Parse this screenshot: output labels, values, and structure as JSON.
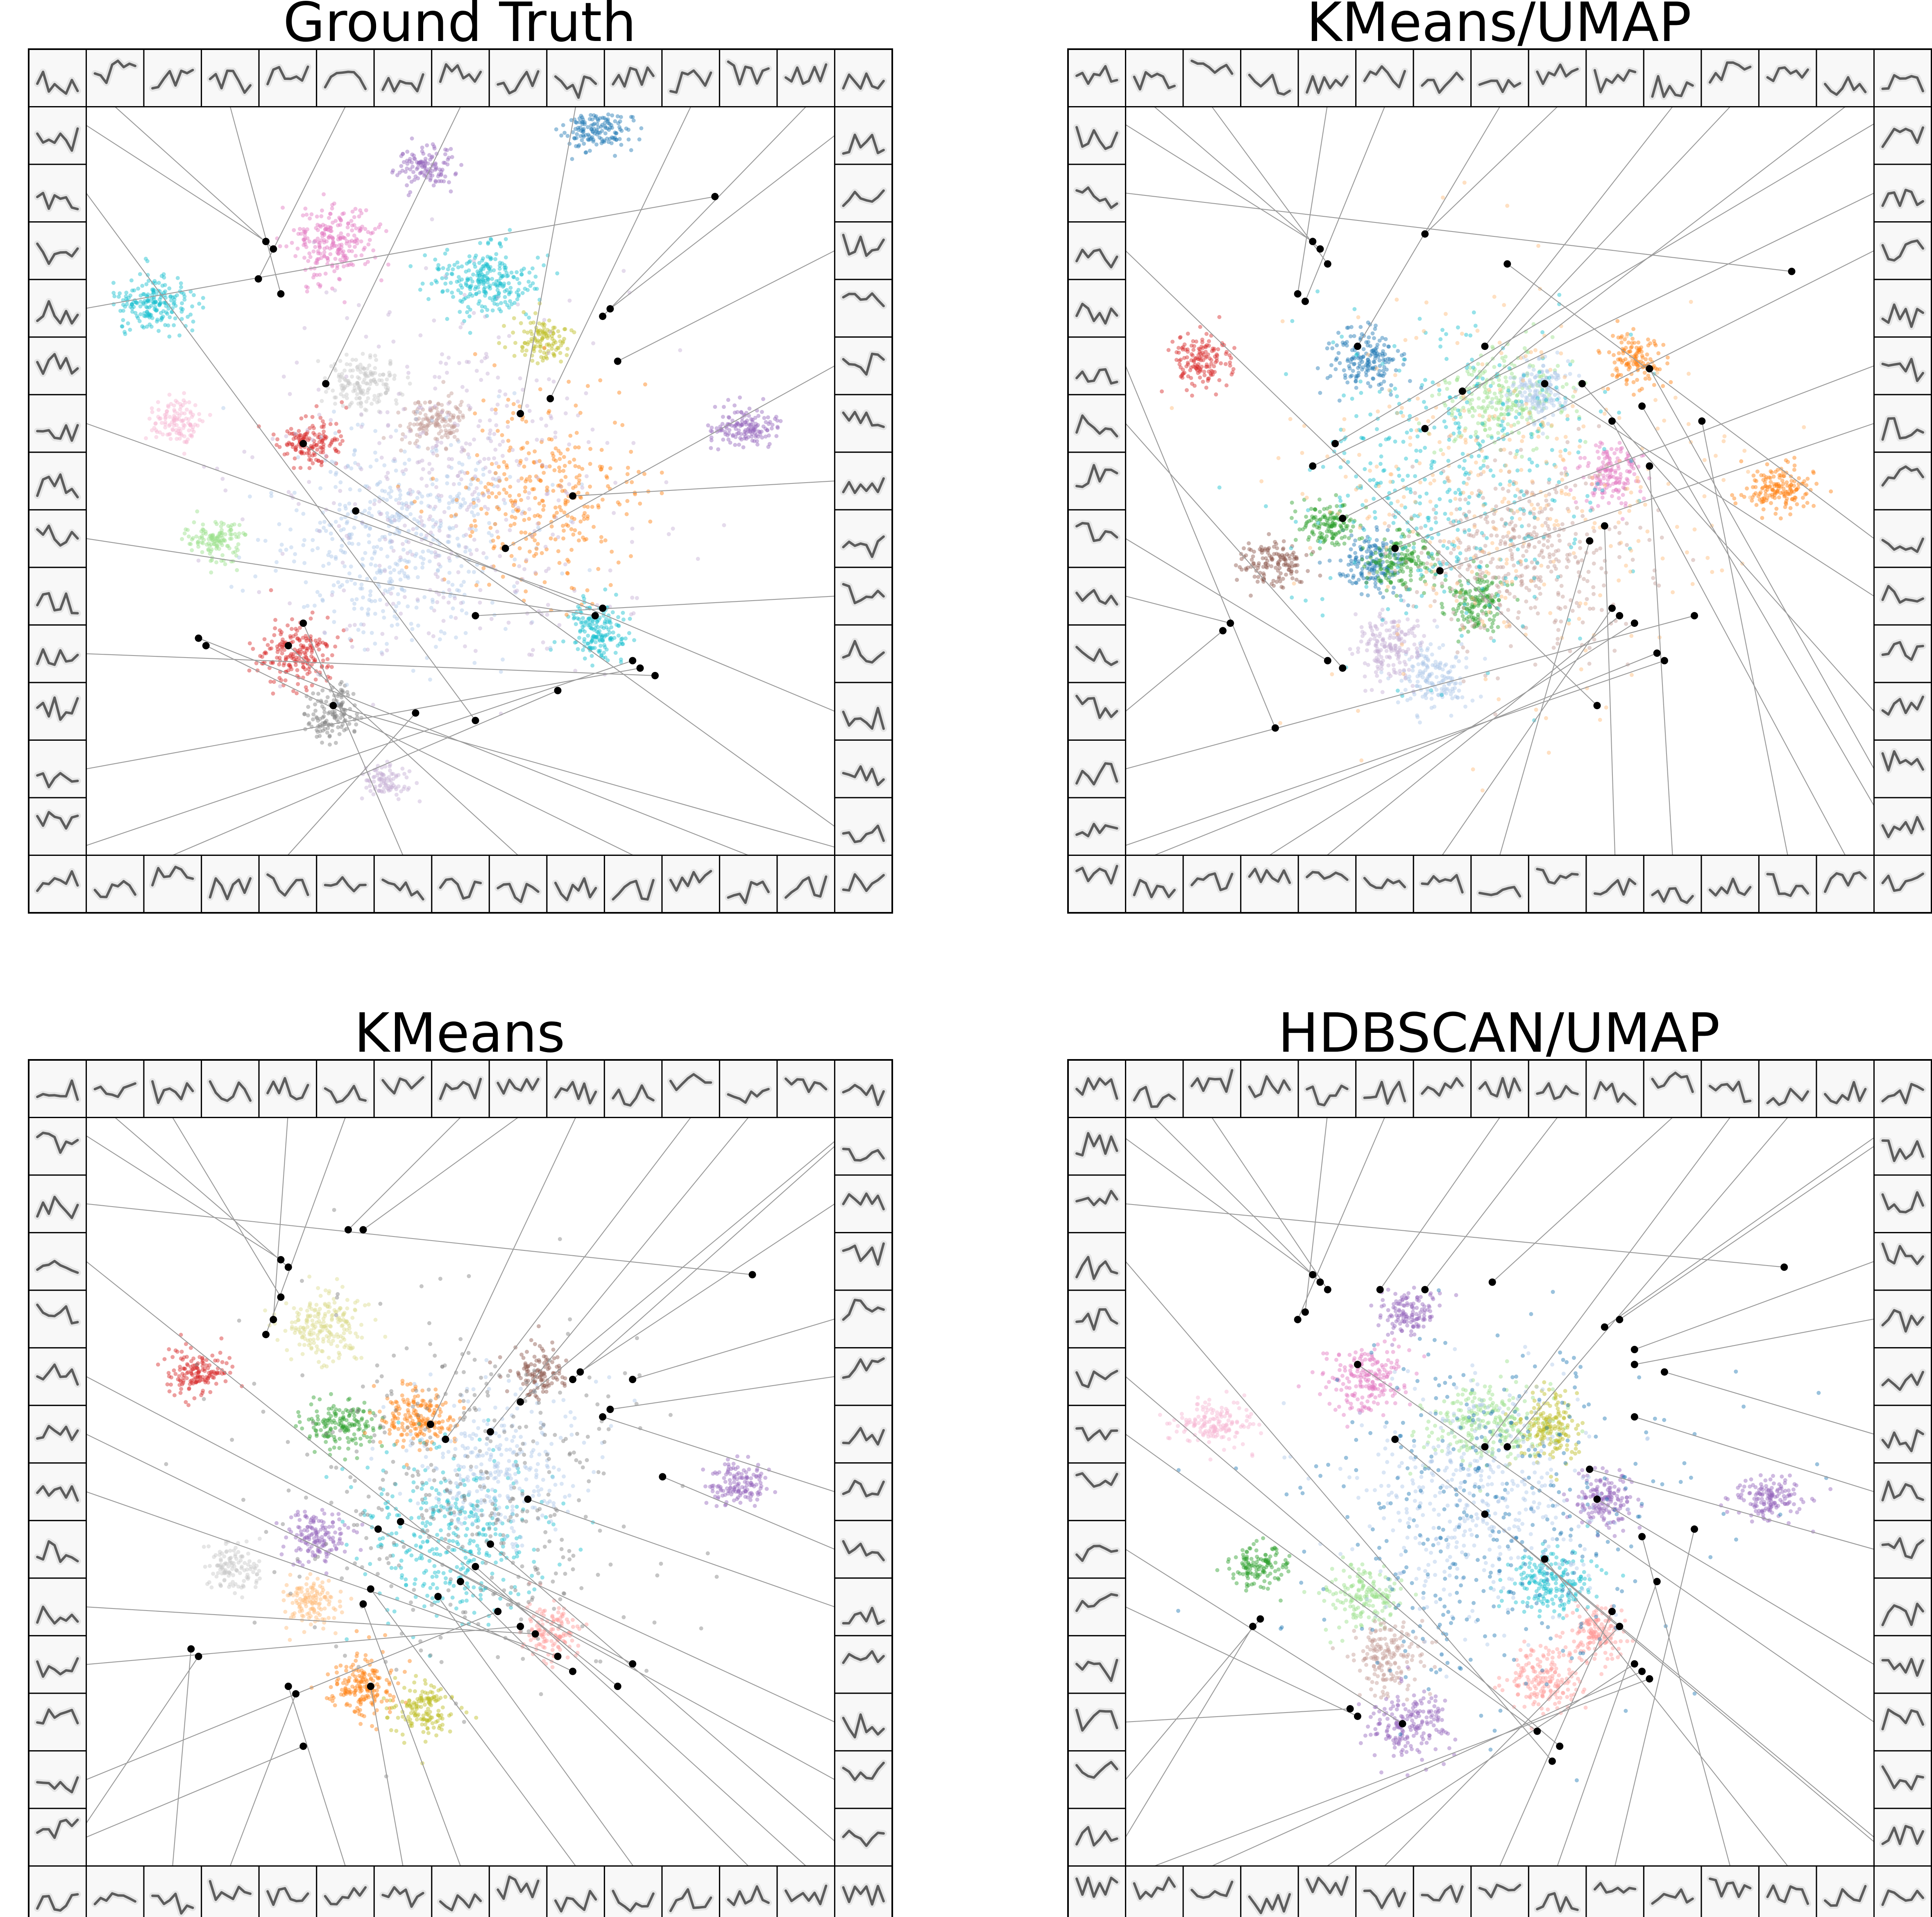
{
  "chart_data": [
    {
      "type": "scatter",
      "title": "Ground Truth",
      "xlabel": "",
      "ylabel": "",
      "seed": 11,
      "clusters": [
        {
          "cx": 0.68,
          "cy": 0.97,
          "sx": 0.022,
          "sy": 0.014,
          "n": 160,
          "color": "#1f77b4"
        },
        {
          "cx": 0.3,
          "cy": 0.55,
          "sx": 0.02,
          "sy": 0.016,
          "n": 150,
          "color": "#d62728"
        },
        {
          "cx": 0.09,
          "cy": 0.74,
          "sx": 0.026,
          "sy": 0.018,
          "n": 200,
          "color": "#17becf"
        },
        {
          "cx": 0.33,
          "cy": 0.82,
          "sx": 0.028,
          "sy": 0.026,
          "n": 240,
          "color": "#e377c2"
        },
        {
          "cx": 0.53,
          "cy": 0.77,
          "sx": 0.036,
          "sy": 0.022,
          "n": 260,
          "color": "#17becf"
        },
        {
          "cx": 0.17,
          "cy": 0.42,
          "sx": 0.02,
          "sy": 0.014,
          "n": 130,
          "color": "#98df8a"
        },
        {
          "cx": 0.12,
          "cy": 0.58,
          "sx": 0.018,
          "sy": 0.016,
          "n": 120,
          "color": "#f7b6d2"
        },
        {
          "cx": 0.47,
          "cy": 0.58,
          "sx": 0.022,
          "sy": 0.018,
          "n": 150,
          "color": "#c49c94"
        },
        {
          "cx": 0.37,
          "cy": 0.63,
          "sx": 0.026,
          "sy": 0.018,
          "n": 170,
          "color": "#c7c7c7"
        },
        {
          "cx": 0.45,
          "cy": 0.92,
          "sx": 0.018,
          "sy": 0.014,
          "n": 120,
          "color": "#9467bd"
        },
        {
          "cx": 0.61,
          "cy": 0.69,
          "sx": 0.018,
          "sy": 0.016,
          "n": 120,
          "color": "#bcbd22"
        },
        {
          "cx": 0.88,
          "cy": 0.57,
          "sx": 0.024,
          "sy": 0.014,
          "n": 150,
          "color": "#9467bd"
        },
        {
          "cx": 0.33,
          "cy": 0.19,
          "sx": 0.02,
          "sy": 0.018,
          "n": 130,
          "color": "#7f7f7f"
        },
        {
          "cx": 0.4,
          "cy": 0.1,
          "sx": 0.016,
          "sy": 0.012,
          "n": 90,
          "color": "#c5b0d5"
        },
        {
          "cx": 0.28,
          "cy": 0.27,
          "sx": 0.024,
          "sy": 0.022,
          "n": 200,
          "color": "#d62728"
        },
        {
          "cx": 0.68,
          "cy": 0.3,
          "sx": 0.02,
          "sy": 0.02,
          "n": 170,
          "color": "#17becf"
        },
        {
          "cx": 0.42,
          "cy": 0.42,
          "sx": 0.08,
          "sy": 0.07,
          "n": 520,
          "color": "#aec7e8"
        },
        {
          "cx": 0.62,
          "cy": 0.48,
          "sx": 0.06,
          "sy": 0.06,
          "n": 320,
          "color": "#ff7f0e"
        },
        {
          "cx": 0.5,
          "cy": 0.5,
          "sx": 0.12,
          "sy": 0.12,
          "n": 420,
          "color": "#c5b0d5"
        }
      ],
      "highlights": [
        [
          0.24,
          0.82
        ],
        [
          0.25,
          0.81
        ],
        [
          0.26,
          0.75
        ],
        [
          0.23,
          0.77
        ],
        [
          0.32,
          0.63
        ],
        [
          0.58,
          0.59
        ],
        [
          0.62,
          0.61
        ],
        [
          0.69,
          0.72
        ],
        [
          0.7,
          0.73
        ],
        [
          0.71,
          0.66
        ],
        [
          0.56,
          0.41
        ],
        [
          0.65,
          0.48
        ],
        [
          0.52,
          0.32
        ],
        [
          0.36,
          0.46
        ],
        [
          0.29,
          0.55
        ],
        [
          0.33,
          0.2
        ],
        [
          0.15,
          0.29
        ],
        [
          0.16,
          0.28
        ],
        [
          0.27,
          0.28
        ],
        [
          0.29,
          0.31
        ],
        [
          0.44,
          0.19
        ],
        [
          0.63,
          0.22
        ],
        [
          0.73,
          0.26
        ],
        [
          0.74,
          0.25
        ],
        [
          0.76,
          0.24
        ],
        [
          0.68,
          0.32
        ],
        [
          0.69,
          0.33
        ],
        [
          0.84,
          0.88
        ],
        [
          0.52,
          0.18
        ]
      ],
      "thumbnail_seed": 3
    },
    {
      "type": "scatter",
      "title": "KMeans/UMAP",
      "xlabel": "",
      "ylabel": "",
      "seed": 23,
      "clusters": [
        {
          "cx": 0.1,
          "cy": 0.66,
          "sx": 0.02,
          "sy": 0.018,
          "n": 150,
          "color": "#d62728"
        },
        {
          "cx": 0.32,
          "cy": 0.66,
          "sx": 0.022,
          "sy": 0.022,
          "n": 170,
          "color": "#1f77b4"
        },
        {
          "cx": 0.5,
          "cy": 0.61,
          "sx": 0.04,
          "sy": 0.03,
          "n": 260,
          "color": "#98df8a"
        },
        {
          "cx": 0.55,
          "cy": 0.62,
          "sx": 0.02,
          "sy": 0.02,
          "n": 160,
          "color": "#aec7e8"
        },
        {
          "cx": 0.68,
          "cy": 0.66,
          "sx": 0.018,
          "sy": 0.018,
          "n": 130,
          "color": "#ff7f0e"
        },
        {
          "cx": 0.87,
          "cy": 0.49,
          "sx": 0.026,
          "sy": 0.016,
          "n": 160,
          "color": "#ff7f0e"
        },
        {
          "cx": 0.65,
          "cy": 0.51,
          "sx": 0.022,
          "sy": 0.02,
          "n": 160,
          "color": "#e377c2"
        },
        {
          "cx": 0.33,
          "cy": 0.39,
          "sx": 0.02,
          "sy": 0.02,
          "n": 160,
          "color": "#1f77b4"
        },
        {
          "cx": 0.27,
          "cy": 0.44,
          "sx": 0.02,
          "sy": 0.016,
          "n": 140,
          "color": "#2ca02c"
        },
        {
          "cx": 0.2,
          "cy": 0.39,
          "sx": 0.022,
          "sy": 0.016,
          "n": 140,
          "color": "#8c564b"
        },
        {
          "cx": 0.37,
          "cy": 0.39,
          "sx": 0.022,
          "sy": 0.02,
          "n": 160,
          "color": "#2ca02c"
        },
        {
          "cx": 0.41,
          "cy": 0.24,
          "sx": 0.024,
          "sy": 0.02,
          "n": 160,
          "color": "#aec7e8"
        },
        {
          "cx": 0.35,
          "cy": 0.28,
          "sx": 0.022,
          "sy": 0.022,
          "n": 180,
          "color": "#c5b0d5"
        },
        {
          "cx": 0.47,
          "cy": 0.34,
          "sx": 0.02,
          "sy": 0.02,
          "n": 160,
          "color": "#2ca02c"
        },
        {
          "cx": 0.53,
          "cy": 0.4,
          "sx": 0.07,
          "sy": 0.06,
          "n": 420,
          "color": "#c49c94"
        },
        {
          "cx": 0.44,
          "cy": 0.5,
          "sx": 0.1,
          "sy": 0.1,
          "n": 420,
          "color": "#17becf"
        },
        {
          "cx": 0.5,
          "cy": 0.48,
          "sx": 0.13,
          "sy": 0.12,
          "n": 360,
          "color": "#ffbb78"
        }
      ],
      "highlights": [
        [
          0.25,
          0.82
        ],
        [
          0.26,
          0.81
        ],
        [
          0.27,
          0.79
        ],
        [
          0.23,
          0.75
        ],
        [
          0.24,
          0.74
        ],
        [
          0.31,
          0.68
        ],
        [
          0.4,
          0.83
        ],
        [
          0.48,
          0.68
        ],
        [
          0.45,
          0.62
        ],
        [
          0.4,
          0.57
        ],
        [
          0.28,
          0.55
        ],
        [
          0.25,
          0.52
        ],
        [
          0.29,
          0.45
        ],
        [
          0.36,
          0.41
        ],
        [
          0.42,
          0.38
        ],
        [
          0.51,
          0.79
        ],
        [
          0.56,
          0.63
        ],
        [
          0.61,
          0.63
        ],
        [
          0.7,
          0.65
        ],
        [
          0.69,
          0.6
        ],
        [
          0.65,
          0.58
        ],
        [
          0.77,
          0.58
        ],
        [
          0.7,
          0.52
        ],
        [
          0.64,
          0.44
        ],
        [
          0.62,
          0.42
        ],
        [
          0.65,
          0.33
        ],
        [
          0.66,
          0.32
        ],
        [
          0.68,
          0.31
        ],
        [
          0.71,
          0.27
        ],
        [
          0.72,
          0.26
        ],
        [
          0.76,
          0.32
        ],
        [
          0.13,
          0.3
        ],
        [
          0.14,
          0.31
        ],
        [
          0.27,
          0.26
        ],
        [
          0.29,
          0.25
        ],
        [
          0.2,
          0.17
        ],
        [
          0.63,
          0.2
        ],
        [
          0.89,
          0.78
        ]
      ],
      "thumbnail_seed": 5
    },
    {
      "type": "scatter",
      "title": "KMeans",
      "xlabel": "",
      "ylabel": "",
      "seed": 37,
      "clusters": [
        {
          "cx": 0.15,
          "cy": 0.66,
          "sx": 0.02,
          "sy": 0.016,
          "n": 150,
          "color": "#d62728"
        },
        {
          "cx": 0.32,
          "cy": 0.72,
          "sx": 0.028,
          "sy": 0.022,
          "n": 210,
          "color": "#dbdb8d"
        },
        {
          "cx": 0.34,
          "cy": 0.59,
          "sx": 0.024,
          "sy": 0.016,
          "n": 160,
          "color": "#2ca02c"
        },
        {
          "cx": 0.44,
          "cy": 0.6,
          "sx": 0.026,
          "sy": 0.02,
          "n": 190,
          "color": "#ff7f0e"
        },
        {
          "cx": 0.6,
          "cy": 0.66,
          "sx": 0.018,
          "sy": 0.018,
          "n": 120,
          "color": "#8c564b"
        },
        {
          "cx": 0.87,
          "cy": 0.51,
          "sx": 0.022,
          "sy": 0.014,
          "n": 140,
          "color": "#9467bd"
        },
        {
          "cx": 0.37,
          "cy": 0.24,
          "sx": 0.024,
          "sy": 0.022,
          "n": 180,
          "color": "#ff7f0e"
        },
        {
          "cx": 0.45,
          "cy": 0.21,
          "sx": 0.022,
          "sy": 0.02,
          "n": 150,
          "color": "#bcbd22"
        },
        {
          "cx": 0.31,
          "cy": 0.44,
          "sx": 0.022,
          "sy": 0.018,
          "n": 150,
          "color": "#9467bd"
        },
        {
          "cx": 0.2,
          "cy": 0.4,
          "sx": 0.018,
          "sy": 0.016,
          "n": 120,
          "color": "#c7c7c7"
        },
        {
          "cx": 0.3,
          "cy": 0.35,
          "sx": 0.018,
          "sy": 0.018,
          "n": 130,
          "color": "#ffbb78"
        },
        {
          "cx": 0.62,
          "cy": 0.31,
          "sx": 0.018,
          "sy": 0.02,
          "n": 130,
          "color": "#ff9896"
        },
        {
          "cx": 0.49,
          "cy": 0.44,
          "sx": 0.06,
          "sy": 0.06,
          "n": 360,
          "color": "#17becf"
        },
        {
          "cx": 0.55,
          "cy": 0.53,
          "sx": 0.06,
          "sy": 0.05,
          "n": 300,
          "color": "#aec7e8"
        },
        {
          "cx": 0.5,
          "cy": 0.5,
          "sx": 0.13,
          "sy": 0.12,
          "n": 400,
          "color": "#7f7f7f"
        }
      ],
      "highlights": [
        [
          0.26,
          0.81
        ],
        [
          0.27,
          0.8
        ],
        [
          0.26,
          0.76
        ],
        [
          0.25,
          0.73
        ],
        [
          0.24,
          0.71
        ],
        [
          0.35,
          0.85
        ],
        [
          0.37,
          0.85
        ],
        [
          0.46,
          0.59
        ],
        [
          0.48,
          0.57
        ],
        [
          0.54,
          0.58
        ],
        [
          0.58,
          0.62
        ],
        [
          0.65,
          0.65
        ],
        [
          0.66,
          0.66
        ],
        [
          0.73,
          0.65
        ],
        [
          0.7,
          0.61
        ],
        [
          0.69,
          0.6
        ],
        [
          0.77,
          0.52
        ],
        [
          0.59,
          0.49
        ],
        [
          0.42,
          0.46
        ],
        [
          0.39,
          0.45
        ],
        [
          0.54,
          0.43
        ],
        [
          0.52,
          0.4
        ],
        [
          0.5,
          0.38
        ],
        [
          0.47,
          0.36
        ],
        [
          0.38,
          0.37
        ],
        [
          0.37,
          0.35
        ],
        [
          0.38,
          0.24
        ],
        [
          0.27,
          0.24
        ],
        [
          0.28,
          0.23
        ],
        [
          0.14,
          0.29
        ],
        [
          0.15,
          0.28
        ],
        [
          0.29,
          0.16
        ],
        [
          0.55,
          0.34
        ],
        [
          0.58,
          0.32
        ],
        [
          0.6,
          0.31
        ],
        [
          0.63,
          0.28
        ],
        [
          0.65,
          0.26
        ],
        [
          0.73,
          0.27
        ],
        [
          0.71,
          0.24
        ],
        [
          0.89,
          0.79
        ]
      ],
      "thumbnail_seed": 7
    },
    {
      "type": "scatter",
      "title": "HDBSCAN/UMAP",
      "xlabel": "",
      "ylabel": "",
      "seed": 53,
      "clusters": [
        {
          "cx": 0.32,
          "cy": 0.65,
          "sx": 0.026,
          "sy": 0.022,
          "n": 200,
          "color": "#e377c2"
        },
        {
          "cx": 0.48,
          "cy": 0.59,
          "sx": 0.04,
          "sy": 0.026,
          "n": 260,
          "color": "#98df8a"
        },
        {
          "cx": 0.57,
          "cy": 0.59,
          "sx": 0.02,
          "sy": 0.024,
          "n": 170,
          "color": "#bcbd22"
        },
        {
          "cx": 0.12,
          "cy": 0.59,
          "sx": 0.024,
          "sy": 0.016,
          "n": 160,
          "color": "#f7b6d2"
        },
        {
          "cx": 0.86,
          "cy": 0.49,
          "sx": 0.024,
          "sy": 0.014,
          "n": 150,
          "color": "#9467bd"
        },
        {
          "cx": 0.64,
          "cy": 0.49,
          "sx": 0.02,
          "sy": 0.02,
          "n": 160,
          "color": "#9467bd"
        },
        {
          "cx": 0.18,
          "cy": 0.4,
          "sx": 0.02,
          "sy": 0.014,
          "n": 130,
          "color": "#2ca02c"
        },
        {
          "cx": 0.32,
          "cy": 0.36,
          "sx": 0.024,
          "sy": 0.02,
          "n": 170,
          "color": "#98df8a"
        },
        {
          "cx": 0.35,
          "cy": 0.28,
          "sx": 0.024,
          "sy": 0.022,
          "n": 170,
          "color": "#c49c94"
        },
        {
          "cx": 0.38,
          "cy": 0.19,
          "sx": 0.026,
          "sy": 0.022,
          "n": 190,
          "color": "#9467bd"
        },
        {
          "cx": 0.56,
          "cy": 0.25,
          "sx": 0.024,
          "sy": 0.022,
          "n": 180,
          "color": "#ff9896"
        },
        {
          "cx": 0.63,
          "cy": 0.31,
          "sx": 0.02,
          "sy": 0.018,
          "n": 150,
          "color": "#ff9896"
        },
        {
          "cx": 0.57,
          "cy": 0.38,
          "sx": 0.03,
          "sy": 0.022,
          "n": 200,
          "color": "#17becf"
        },
        {
          "cx": 0.38,
          "cy": 0.74,
          "sx": 0.018,
          "sy": 0.016,
          "n": 130,
          "color": "#9467bd"
        },
        {
          "cx": 0.47,
          "cy": 0.49,
          "sx": 0.08,
          "sy": 0.08,
          "n": 440,
          "color": "#aec7e8"
        },
        {
          "cx": 0.5,
          "cy": 0.48,
          "sx": 0.13,
          "sy": 0.12,
          "n": 380,
          "color": "#1f77b4"
        }
      ],
      "highlights": [
        [
          0.25,
          0.79
        ],
        [
          0.26,
          0.78
        ],
        [
          0.27,
          0.77
        ],
        [
          0.24,
          0.74
        ],
        [
          0.23,
          0.73
        ],
        [
          0.34,
          0.77
        ],
        [
          0.4,
          0.77
        ],
        [
          0.49,
          0.78
        ],
        [
          0.48,
          0.56
        ],
        [
          0.51,
          0.56
        ],
        [
          0.64,
          0.72
        ],
        [
          0.66,
          0.73
        ],
        [
          0.68,
          0.69
        ],
        [
          0.68,
          0.67
        ],
        [
          0.72,
          0.66
        ],
        [
          0.68,
          0.6
        ],
        [
          0.62,
          0.53
        ],
        [
          0.63,
          0.49
        ],
        [
          0.31,
          0.67
        ],
        [
          0.36,
          0.57
        ],
        [
          0.48,
          0.47
        ],
        [
          0.56,
          0.41
        ],
        [
          0.69,
          0.44
        ],
        [
          0.76,
          0.45
        ],
        [
          0.71,
          0.38
        ],
        [
          0.65,
          0.34
        ],
        [
          0.66,
          0.32
        ],
        [
          0.68,
          0.27
        ],
        [
          0.69,
          0.26
        ],
        [
          0.7,
          0.25
        ],
        [
          0.17,
          0.32
        ],
        [
          0.18,
          0.33
        ],
        [
          0.3,
          0.21
        ],
        [
          0.31,
          0.2
        ],
        [
          0.37,
          0.19
        ],
        [
          0.55,
          0.18
        ],
        [
          0.58,
          0.16
        ],
        [
          0.57,
          0.14
        ],
        [
          0.88,
          0.8
        ]
      ],
      "thumbnail_seed": 9
    }
  ]
}
